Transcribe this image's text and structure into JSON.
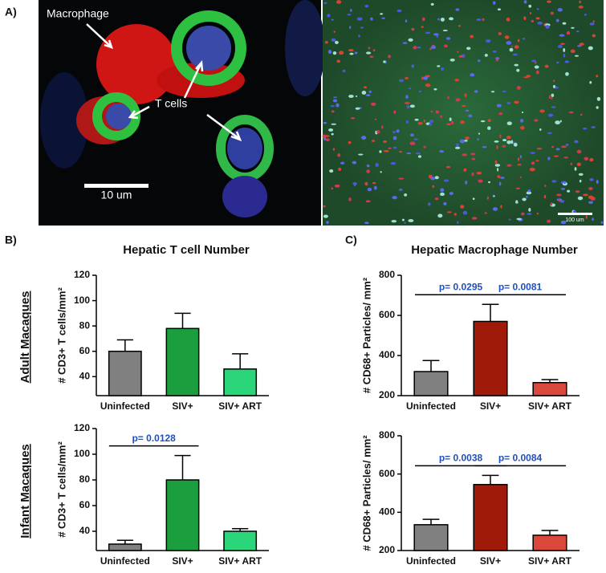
{
  "panels": {
    "a": {
      "label": "A)",
      "annotations": [
        "Macrophage",
        "T cells"
      ],
      "scale_bars": [
        "10 um",
        "100 um"
      ]
    },
    "b": {
      "label": "B)",
      "title": "Hepatic T cell Number"
    },
    "c": {
      "label": "C)",
      "title": "Hepatic Macrophage Number"
    },
    "rows": [
      "Adult Macaques",
      "Infant Macaques"
    ]
  },
  "chart_data": [
    {
      "type": "bar",
      "ylabel": "# CD3+ T cells/mm²",
      "categories": [
        "Uninfected",
        "SIV+",
        "SIV+ ART"
      ],
      "values": [
        60,
        78,
        46
      ],
      "errors": [
        9,
        12,
        12
      ],
      "colors": [
        "#808080",
        "#1a9e3e",
        "#2bd67b"
      ],
      "ylim": [
        25,
        120
      ],
      "yticks": [
        40,
        60,
        80,
        100,
        120
      ],
      "annotations": []
    },
    {
      "type": "bar",
      "ylabel": "# CD68+ Particles/ mm²",
      "categories": [
        "Uninfected",
        "SIV+",
        "SIV+ ART"
      ],
      "values": [
        320,
        570,
        265
      ],
      "errors": [
        55,
        85,
        15
      ],
      "colors": [
        "#808080",
        "#a01a0a",
        "#d9483b"
      ],
      "ylim": [
        200,
        800
      ],
      "yticks": [
        200,
        400,
        600,
        800
      ],
      "annotations": [
        {
          "label": "p= 0.0295",
          "span": [
            "Uninfected",
            "SIV+"
          ]
        },
        {
          "label": "p= 0.0081",
          "span": [
            "SIV+",
            "SIV+ ART"
          ]
        }
      ]
    },
    {
      "type": "bar",
      "ylabel": "# CD3+ T cells/mm²",
      "categories": [
        "Uninfected",
        "SIV+",
        "SIV+ ART"
      ],
      "values": [
        30,
        80,
        40
      ],
      "errors": [
        3,
        19,
        2
      ],
      "colors": [
        "#808080",
        "#1a9e3e",
        "#2bd67b"
      ],
      "ylim": [
        25,
        120
      ],
      "yticks": [
        40,
        60,
        80,
        100,
        120
      ],
      "annotations": [
        {
          "label": "p= 0.0128",
          "span": [
            "Uninfected",
            "SIV+"
          ]
        }
      ]
    },
    {
      "type": "bar",
      "ylabel": "# CD68+ Particles/ mm²",
      "categories": [
        "Uninfected",
        "SIV+",
        "SIV+ ART"
      ],
      "values": [
        335,
        545,
        280
      ],
      "errors": [
        28,
        48,
        25
      ],
      "colors": [
        "#808080",
        "#a01a0a",
        "#d9483b"
      ],
      "ylim": [
        200,
        800
      ],
      "yticks": [
        200,
        400,
        600,
        800
      ],
      "annotations": [
        {
          "label": "p= 0.0038",
          "span": [
            "Uninfected",
            "SIV+"
          ]
        },
        {
          "label": "p= 0.0084",
          "span": [
            "SIV+",
            "SIV+ ART"
          ]
        }
      ]
    }
  ]
}
